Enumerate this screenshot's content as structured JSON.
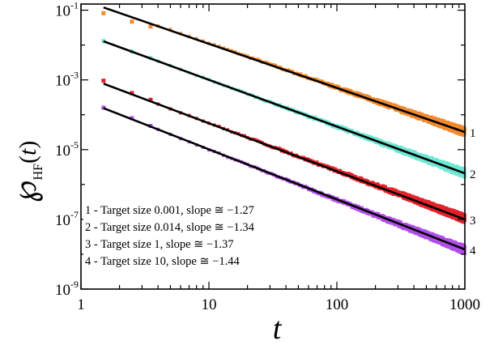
{
  "chart_data": {
    "type": "scatter",
    "title": "",
    "xlabel": "t",
    "ylabel": {
      "symbol": "℘",
      "subscript": "HF",
      "open": "(",
      "variable": "t",
      "close": ")"
    },
    "xscale": "log",
    "yscale": "log",
    "xlim": [
      1,
      1000
    ],
    "ylim": [
      1e-09,
      0.15
    ],
    "x_ticks": [
      {
        "value": 1,
        "label": "1"
      },
      {
        "value": 10,
        "label": "10"
      },
      {
        "value": 100,
        "label": "100"
      },
      {
        "value": 1000,
        "label": "1000"
      }
    ],
    "y_ticks": [
      {
        "value": 0.1,
        "base": "10",
        "exp": "-1"
      },
      {
        "value": 0.001,
        "base": "10",
        "exp": "-3"
      },
      {
        "value": 1e-05,
        "base": "10",
        "exp": "-5"
      },
      {
        "value": 1e-07,
        "base": "10",
        "exp": "-7"
      },
      {
        "value": 1e-09,
        "base": "10",
        "exp": "-9"
      }
    ],
    "series": [
      {
        "id": "1",
        "name": "1 - Target size 0.001, slope ≅ −1.27",
        "label": "1",
        "color": "#f28a2e",
        "slope": -1.27,
        "fit_x": [
          1.5,
          1000
        ],
        "fit_y": [
          0.12,
          3.18e-05
        ],
        "first_points": [
          {
            "x": 1.5,
            "y": 0.082
          },
          {
            "x": 2.5,
            "y": 0.047
          },
          {
            "x": 3.5,
            "y": 0.034
          }
        ]
      },
      {
        "id": "2",
        "name": "2 - Target size 0.014, slope ≅ −1.34",
        "label": "2",
        "color": "#6ee8d4",
        "slope": -1.34,
        "fit_x": [
          1.5,
          1000
        ],
        "fit_y": [
          0.0128,
          2.09e-06
        ],
        "first_points": [
          {
            "x": 1.5,
            "y": 0.013
          },
          {
            "x": 2.5,
            "y": 0.0065
          },
          {
            "x": 3.5,
            "y": 0.0042
          }
        ]
      },
      {
        "id": "3",
        "name": "3 - Target size 1, slope ≅ −1.37",
        "label": "3",
        "color": "#e3222b",
        "slope": -1.37,
        "fit_x": [
          1.5,
          1000
        ],
        "fit_y": [
          0.00078,
          9.97e-08
        ],
        "first_points": [
          {
            "x": 1.5,
            "y": 0.00095
          },
          {
            "x": 2.5,
            "y": 0.00042
          },
          {
            "x": 3.5,
            "y": 0.00027
          }
        ]
      },
      {
        "id": "4",
        "name": "4 - Target size 10, slope ≅ −1.44",
        "label": "4",
        "color": "#b14ee8",
        "slope": -1.44,
        "fit_x": [
          1.5,
          1000
        ],
        "fit_y": [
          0.000155,
          1.37e-08
        ],
        "first_points": [
          {
            "x": 1.5,
            "y": 0.00016
          },
          {
            "x": 2.5,
            "y": 8e-05
          },
          {
            "x": 3.5,
            "y": 4.8e-05
          }
        ]
      }
    ],
    "legend_position": "bottom-left"
  }
}
